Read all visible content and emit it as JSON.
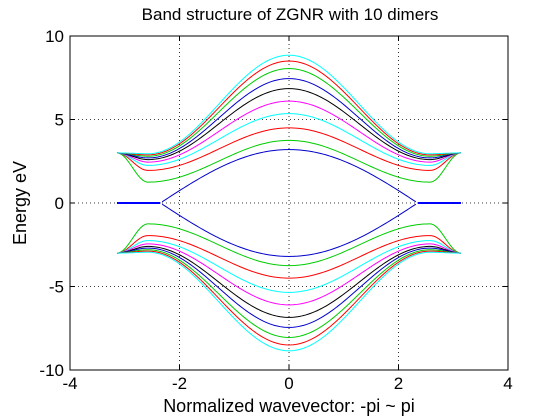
{
  "chart_data": {
    "type": "line",
    "title": "Band structure of ZGNR with 10 dimers",
    "xlabel": "Normalized wavevector: -pi ~ pi",
    "ylabel": "Energy eV",
    "xlim": [
      -4,
      4
    ],
    "ylim": [
      -10,
      10
    ],
    "x_ticks": [
      "-4",
      "-2",
      "0",
      "2",
      "4"
    ],
    "y_ticks": [
      "-10",
      "-5",
      "0",
      "5",
      "10"
    ],
    "x_tick_values": [
      -4,
      -2,
      0,
      2,
      4
    ],
    "y_tick_values": [
      -10,
      -5,
      0,
      5,
      10
    ],
    "grid": true,
    "grid_style": "dotted",
    "k_range": [
      -3.1416,
      3.1416
    ],
    "edge_value": 3.0,
    "flat_band_segments": [
      {
        "x": [
          -3.1416,
          -2.35
        ],
        "y": 0.0
      },
      {
        "x": [
          2.35,
          3.1416
        ],
        "y": 0.0
      }
    ],
    "conduction_bands": [
      {
        "color": "#0000cc",
        "min_energy": 0.0,
        "center_energy": 3.2,
        "edge_energy": 3.0
      },
      {
        "color": "#00cc00",
        "min_energy": 1.25,
        "center_energy": 3.75,
        "edge_energy": 3.0
      },
      {
        "color": "#ff0000",
        "min_energy": 1.95,
        "center_energy": 4.5,
        "edge_energy": 3.0
      },
      {
        "color": "#00ffff",
        "min_energy": 2.25,
        "center_energy": 5.35,
        "edge_energy": 3.0
      },
      {
        "color": "#ff00ff",
        "min_energy": 2.45,
        "center_energy": 6.1,
        "edge_energy": 3.0
      },
      {
        "color": "#000000",
        "min_energy": 2.6,
        "center_energy": 6.85,
        "edge_energy": 3.0
      },
      {
        "color": "#0000cc",
        "min_energy": 2.7,
        "center_energy": 7.45,
        "edge_energy": 3.0
      },
      {
        "color": "#00cc00",
        "min_energy": 2.8,
        "center_energy": 8.05,
        "edge_energy": 3.0
      },
      {
        "color": "#ff0000",
        "min_energy": 2.88,
        "center_energy": 8.5,
        "edge_energy": 3.0
      },
      {
        "color": "#00ffff",
        "min_energy": 2.95,
        "center_energy": 8.85,
        "edge_energy": 3.0
      }
    ],
    "valence_bands_mirror": true,
    "colors": {
      "axes": "#000000",
      "grid": "#000000",
      "background": "#ffffff",
      "flat_band": "#0000ff"
    }
  }
}
